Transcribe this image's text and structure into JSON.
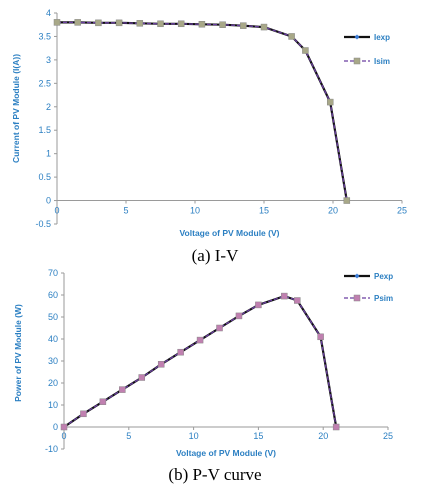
{
  "colors": {
    "text": "#2b7fc2",
    "exp_line": "#111111",
    "exp_marker": "#3b7dd8",
    "sim_line": "#6a3fa0",
    "iv_sim_marker": "#a8a888",
    "pv_sim_marker": "#c080b0"
  },
  "chart_data": [
    {
      "type": "line",
      "caption": "(a) I-V",
      "xlabel": "Voltage of PV Module (V)",
      "ylabel": "Current of PV Module (I(A))",
      "xlim": [
        0,
        25
      ],
      "ylim": [
        -0.5,
        4
      ],
      "xticks": [
        "0",
        "5",
        "10",
        "15",
        "20",
        "25"
      ],
      "yticks": [
        "-0.5",
        "0",
        "0.5",
        "1",
        "1.5",
        "2",
        "2.5",
        "3",
        "3.5",
        "4"
      ],
      "grid": false,
      "legend_position": "right",
      "series": [
        {
          "name": "Iexp",
          "x": [
            0,
            1.5,
            3,
            4.5,
            6,
            7.5,
            9,
            10.5,
            12,
            13.5,
            15,
            17,
            18,
            19.8,
            21
          ],
          "y": [
            3.8,
            3.8,
            3.79,
            3.79,
            3.78,
            3.77,
            3.77,
            3.76,
            3.75,
            3.73,
            3.7,
            3.5,
            3.2,
            2.1,
            0
          ]
        },
        {
          "name": "Isim",
          "x": [
            0,
            1.5,
            3,
            4.5,
            6,
            7.5,
            9,
            10.5,
            12,
            13.5,
            15,
            17,
            18,
            19.8,
            21
          ],
          "y": [
            3.8,
            3.8,
            3.79,
            3.79,
            3.78,
            3.77,
            3.77,
            3.76,
            3.75,
            3.73,
            3.7,
            3.5,
            3.2,
            2.1,
            0
          ]
        }
      ]
    },
    {
      "type": "line",
      "caption": "(b) P-V curve",
      "xlabel": "Voltage of PV Module (V)",
      "ylabel": "Power of PV Module (W)",
      "xlim": [
        0,
        25
      ],
      "ylim": [
        -10,
        70
      ],
      "xticks": [
        "0",
        "5",
        "10",
        "15",
        "20",
        "25"
      ],
      "yticks": [
        "-10",
        "0",
        "10",
        "20",
        "30",
        "40",
        "50",
        "60",
        "70"
      ],
      "grid": false,
      "legend_position": "right",
      "series": [
        {
          "name": "Pexp",
          "x": [
            0,
            1.5,
            3,
            4.5,
            6,
            7.5,
            9,
            10.5,
            12,
            13.5,
            15,
            17,
            18,
            19.8,
            21
          ],
          "y": [
            0,
            6,
            11.5,
            17,
            22.5,
            28.5,
            34,
            39.5,
            45,
            50.5,
            55.5,
            59.5,
            57.5,
            41,
            0
          ]
        },
        {
          "name": "Psim",
          "x": [
            0,
            1.5,
            3,
            4.5,
            6,
            7.5,
            9,
            10.5,
            12,
            13.5,
            15,
            17,
            18,
            19.8,
            21
          ],
          "y": [
            0,
            6,
            11.5,
            17,
            22.5,
            28.5,
            34,
            39.5,
            45,
            50.5,
            55.5,
            59.5,
            57.5,
            41,
            0
          ]
        }
      ]
    }
  ]
}
